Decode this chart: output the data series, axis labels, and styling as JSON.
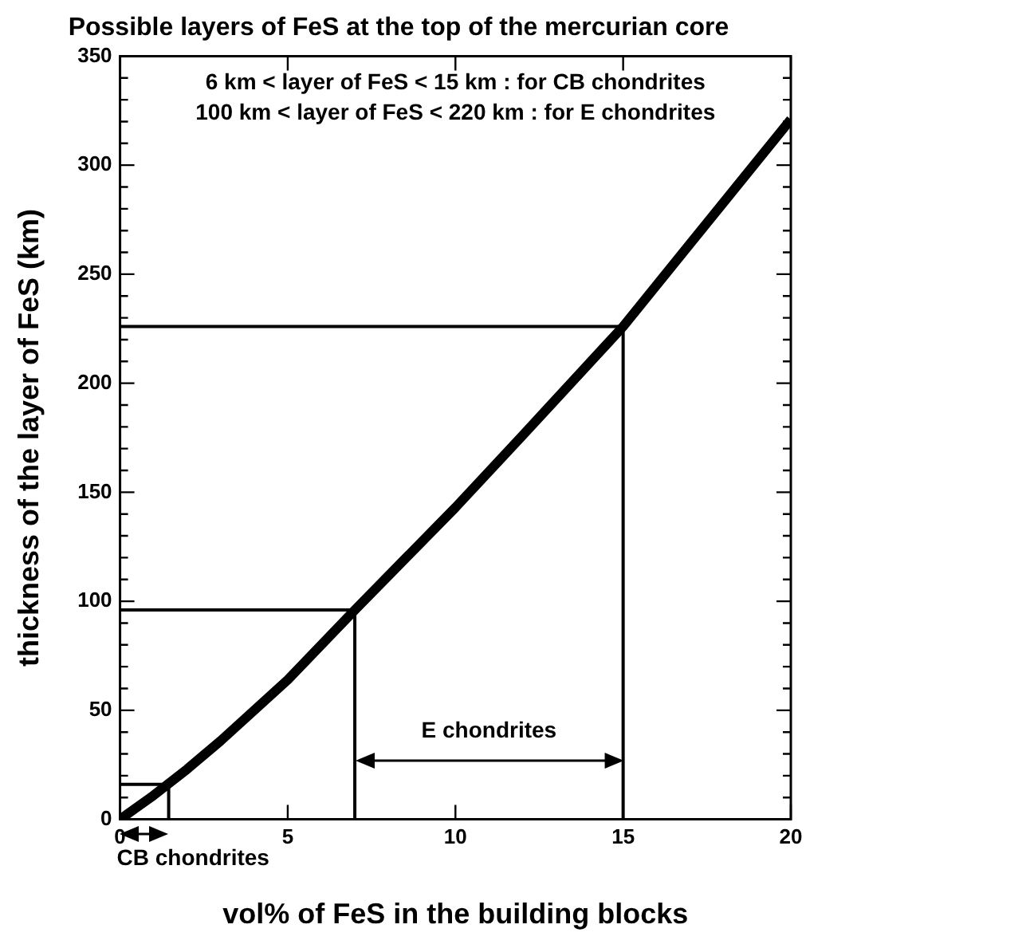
{
  "chart_data": {
    "type": "line",
    "title": "Possible layers of FeS at the top of the mercurian core",
    "xlabel": "vol% of FeS in the building blocks",
    "ylabel": "thickness of the layer of FeS (km)",
    "annotations": [
      "6 km < layer of FeS < 15 km : for CB chondrites",
      "100 km < layer of FeS < 220 km : for E chondrites",
      "E chondrites",
      "CB chondrites"
    ],
    "series": [
      {
        "color": "#000000",
        "x": [
          0,
          1,
          2,
          3,
          5,
          7,
          10,
          12,
          15,
          17,
          20
        ],
        "values": [
          0,
          11,
          23,
          36,
          64,
          96,
          143,
          176,
          226,
          264,
          321
        ]
      },
      {
        "color": "#000000",
        "x": [
          0,
          1.45,
          1.45
        ],
        "values": [
          16,
          16,
          0
        ]
      },
      {
        "color": "#000000",
        "x": [
          0,
          7,
          7
        ],
        "values": [
          96,
          96,
          0
        ]
      },
      {
        "color": "#000000",
        "x": [
          0,
          15,
          15
        ],
        "values": [
          226,
          226,
          0
        ]
      }
    ],
    "xlim": [
      0,
      20
    ],
    "xticks": [
      0,
      5,
      10,
      15,
      20
    ],
    "ylim": [
      0,
      350
    ],
    "yticks": [
      0,
      {
        "value": 10,
        "label": null
      },
      {
        "value": 20,
        "label": null
      },
      {
        "value": 30,
        "label": null
      },
      {
        "value": 40,
        "label": null
      },
      50,
      {
        "value": 60,
        "label": null
      },
      {
        "value": 70,
        "label": null
      },
      {
        "value": 80,
        "label": null
      },
      {
        "value": 90,
        "label": null
      },
      100,
      {
        "value": 110,
        "label": null
      },
      {
        "value": 120,
        "label": null
      },
      {
        "value": 130,
        "label": null
      },
      {
        "value": 140,
        "label": null
      },
      150,
      {
        "value": 160,
        "label": null
      },
      {
        "value": 170,
        "label": null
      },
      {
        "value": 180,
        "label": null
      },
      {
        "value": 190,
        "label": null
      },
      200,
      {
        "value": 210,
        "label": null
      },
      {
        "value": 220,
        "label": null
      },
      {
        "value": 230,
        "label": null
      },
      {
        "value": 240,
        "label": null
      },
      250,
      {
        "value": 260,
        "label": null
      },
      {
        "value": 270,
        "label": null
      },
      {
        "value": 280,
        "label": null
      },
      {
        "value": 290,
        "label": null
      },
      300,
      {
        "value": 310,
        "label": null
      },
      {
        "value": 320,
        "label": null
      },
      {
        "value": 330,
        "label": null
      },
      {
        "value": 340,
        "label": null
      },
      350
    ],
    "grid": false,
    "legend": false,
    "marker": "none",
    "line_style": "solid"
  }
}
